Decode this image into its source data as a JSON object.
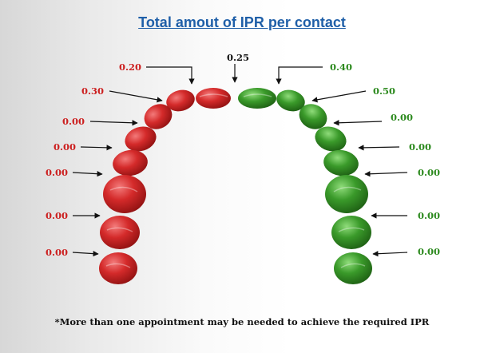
{
  "title": "Total amout of IPR per contact",
  "footnote": "*More than one appointment may be needed to achieve the required IPR",
  "colors": {
    "title": "#1f5fa8",
    "left_teeth": "#d42a2a",
    "left_labels": "#cc1f1f",
    "right_teeth": "#3a9a2a",
    "right_labels": "#2d8a1f",
    "center_label": "#111111",
    "arrows": "#111111"
  },
  "labels": {
    "midline": "0.25",
    "left": [
      "0.20",
      "0.30",
      "0.00",
      "0.00",
      "0.00",
      "0.00",
      "0.00"
    ],
    "right": [
      "0.40",
      "0.50",
      "0.00",
      "0.00",
      "0.00",
      "0.00",
      "0.00"
    ]
  }
}
